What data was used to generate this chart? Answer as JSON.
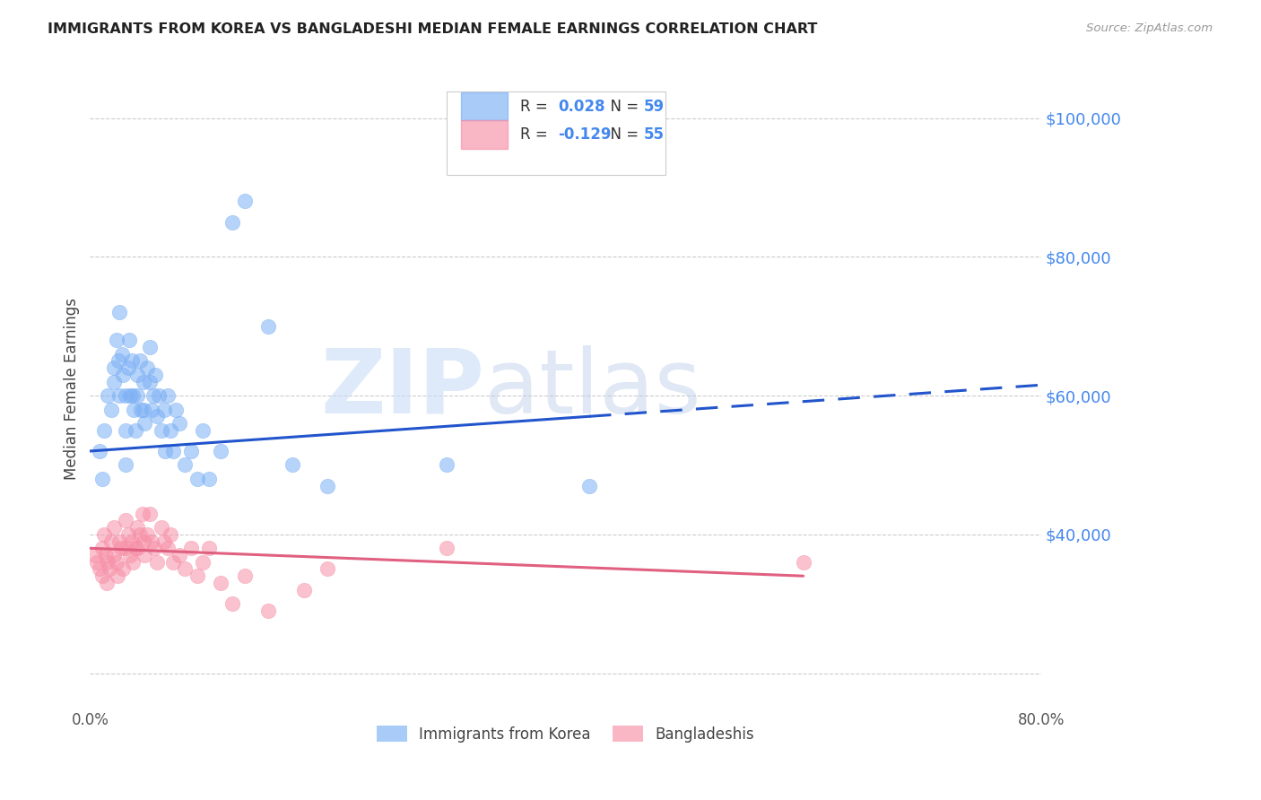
{
  "title": "IMMIGRANTS FROM KOREA VS BANGLADESHI MEDIAN FEMALE EARNINGS CORRELATION CHART",
  "source": "Source: ZipAtlas.com",
  "ylabel": "Median Female Earnings",
  "ylim": [
    15000,
    107000
  ],
  "xlim": [
    0.0,
    0.8
  ],
  "korea_color": "#7aaff5",
  "bangla_color": "#f78fa7",
  "korea_trend_color": "#2255cc",
  "bangla_trend_color": "#e06080",
  "korea_R": 0.028,
  "korea_N": 59,
  "bangla_R": -0.129,
  "bangla_N": 55,
  "legend_label_korea": "Immigrants from Korea",
  "legend_label_bangla": "Bangladeshis",
  "korea_x": [
    0.008,
    0.01,
    0.012,
    0.015,
    0.018,
    0.02,
    0.02,
    0.022,
    0.024,
    0.025,
    0.025,
    0.027,
    0.028,
    0.03,
    0.03,
    0.03,
    0.032,
    0.033,
    0.034,
    0.035,
    0.036,
    0.037,
    0.038,
    0.04,
    0.04,
    0.042,
    0.043,
    0.045,
    0.045,
    0.046,
    0.048,
    0.05,
    0.05,
    0.052,
    0.053,
    0.055,
    0.056,
    0.058,
    0.06,
    0.062,
    0.063,
    0.065,
    0.068,
    0.07,
    0.072,
    0.075,
    0.08,
    0.085,
    0.09,
    0.095,
    0.1,
    0.11,
    0.12,
    0.13,
    0.15,
    0.17,
    0.2,
    0.3,
    0.42
  ],
  "korea_y": [
    52000,
    48000,
    55000,
    60000,
    58000,
    64000,
    62000,
    68000,
    65000,
    72000,
    60000,
    66000,
    63000,
    60000,
    55000,
    50000,
    64000,
    68000,
    60000,
    65000,
    60000,
    58000,
    55000,
    63000,
    60000,
    65000,
    58000,
    62000,
    58000,
    56000,
    64000,
    67000,
    62000,
    58000,
    60000,
    63000,
    57000,
    60000,
    55000,
    58000,
    52000,
    60000,
    55000,
    52000,
    58000,
    56000,
    50000,
    52000,
    48000,
    55000,
    48000,
    52000,
    85000,
    88000,
    70000,
    50000,
    47000,
    50000,
    47000
  ],
  "bangla_x": [
    0.004,
    0.006,
    0.008,
    0.01,
    0.01,
    0.012,
    0.013,
    0.014,
    0.015,
    0.016,
    0.018,
    0.02,
    0.02,
    0.022,
    0.023,
    0.025,
    0.026,
    0.028,
    0.03,
    0.03,
    0.032,
    0.034,
    0.035,
    0.036,
    0.038,
    0.04,
    0.04,
    0.042,
    0.044,
    0.045,
    0.046,
    0.048,
    0.05,
    0.052,
    0.054,
    0.056,
    0.06,
    0.062,
    0.065,
    0.068,
    0.07,
    0.075,
    0.08,
    0.085,
    0.09,
    0.095,
    0.1,
    0.11,
    0.12,
    0.13,
    0.15,
    0.18,
    0.2,
    0.3,
    0.6
  ],
  "bangla_y": [
    37000,
    36000,
    35000,
    38000,
    34000,
    40000,
    37000,
    33000,
    36000,
    35000,
    39000,
    41000,
    37000,
    36000,
    34000,
    39000,
    38000,
    35000,
    42000,
    38000,
    40000,
    37000,
    39000,
    36000,
    38000,
    41000,
    38000,
    40000,
    43000,
    39000,
    37000,
    40000,
    43000,
    39000,
    38000,
    36000,
    41000,
    39000,
    38000,
    40000,
    36000,
    37000,
    35000,
    38000,
    34000,
    36000,
    38000,
    33000,
    30000,
    34000,
    29000,
    32000,
    35000,
    38000,
    36000
  ],
  "watermark_zip": "ZIP",
  "watermark_atlas": "atlas",
  "background_color": "#ffffff",
  "grid_color": "#cccccc",
  "title_color": "#222222",
  "source_color": "#999999",
  "ytick_color": "#4488ee"
}
